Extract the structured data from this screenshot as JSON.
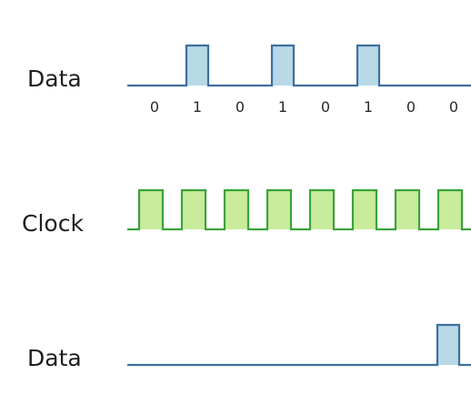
{
  "labels": {
    "data_top": "Data",
    "clock": "Clock",
    "data_bottom": "Data"
  },
  "bits": [
    "0",
    "1",
    "0",
    "1",
    "0",
    "1",
    "0",
    "0"
  ],
  "clock_pulse_count": 8,
  "colors": {
    "data_stroke": "#3f6f9e",
    "data_fill": "#b7d9e6",
    "clock_stroke": "#3aa33a",
    "clock_fill": "#c8eb9c",
    "text": "#1f1f1f"
  }
}
